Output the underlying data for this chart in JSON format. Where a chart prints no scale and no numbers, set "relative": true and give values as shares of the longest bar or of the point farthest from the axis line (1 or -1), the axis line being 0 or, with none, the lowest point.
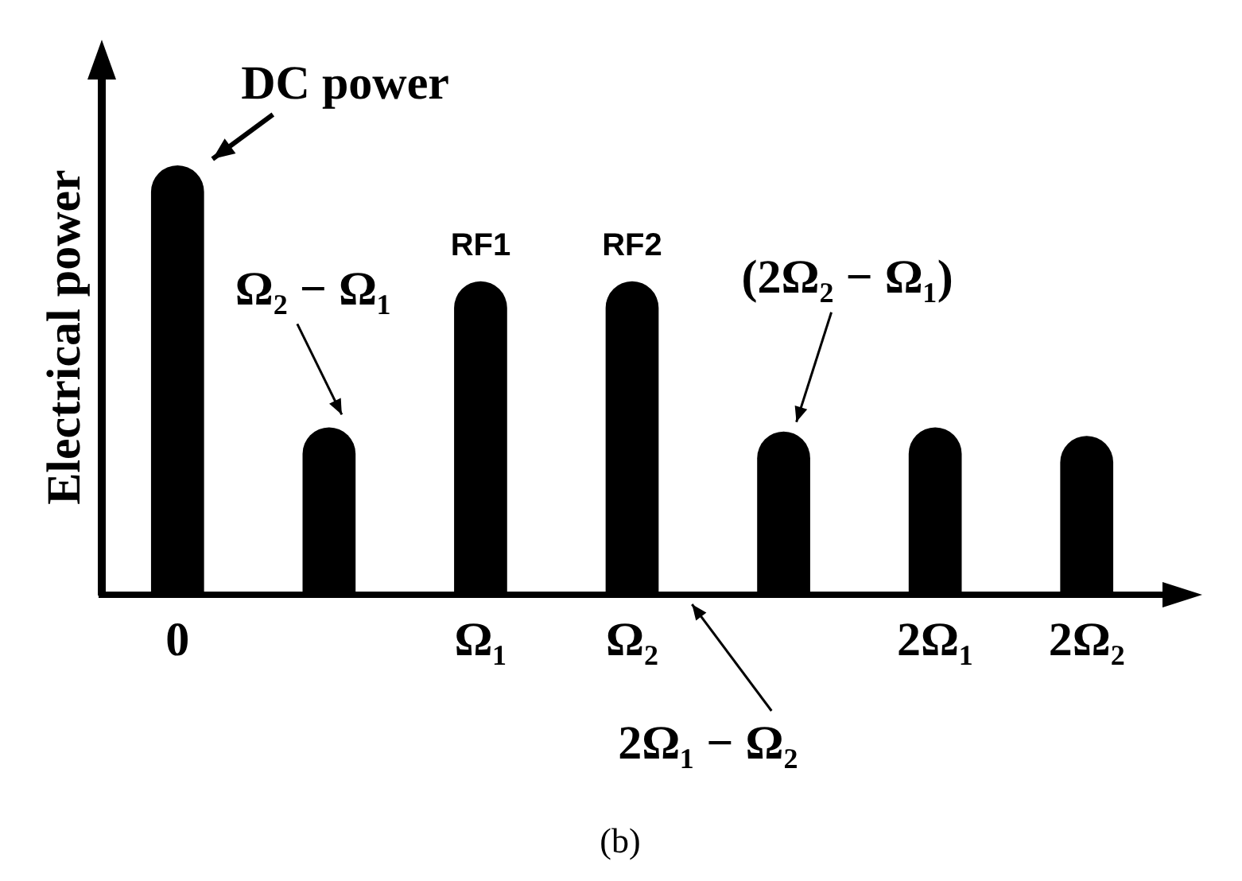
{
  "chart_data": {
    "type": "bar",
    "relative": true,
    "ylabel": "Electrical power",
    "categories": [
      "0",
      null,
      "Ω₁",
      "Ω₂",
      null,
      "2Ω₁",
      "2Ω₂"
    ],
    "values": [
      1,
      0.39,
      0.73,
      0.73,
      0.38,
      0.39,
      0.37
    ],
    "color": "#000000",
    "annotations": [
      {
        "text": "DC power",
        "x": "0",
        "y": 1
      },
      {
        "text": "RF1",
        "x": "Ω₁",
        "y": 0.73
      },
      {
        "text": "RF2",
        "x": "Ω₂",
        "y": 0.73
      },
      "Ω₂ − Ω₁",
      "(2Ω₂ − Ω₁)",
      "2Ω₁ − Ω₂",
      "(b)"
    ]
  }
}
